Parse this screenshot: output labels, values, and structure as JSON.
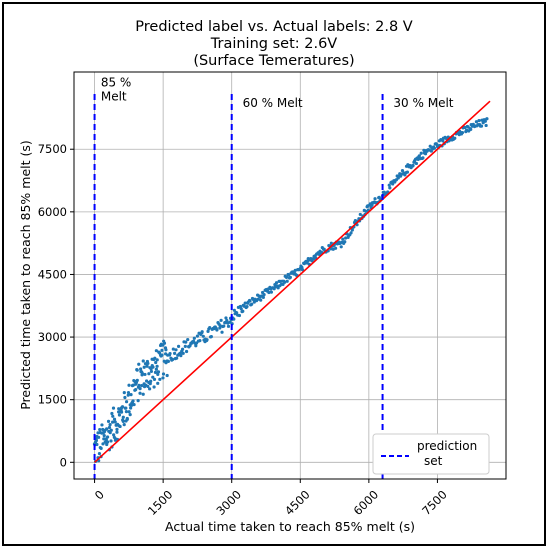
{
  "chart_data": {
    "type": "scatter",
    "title_lines": [
      "Predicted label vs. Actual labels: 2.8 V",
      "Training set: 2.6V",
      "(Surface Temeratures)"
    ],
    "xlabel": "Actual time taken to reach 85% melt (s)",
    "ylabel": "Predicted time taken to reach 85% melt (s)",
    "xlim": [
      -450,
      9000
    ],
    "ylim": [
      -400,
      9350
    ],
    "xticks": [
      0,
      1500,
      3000,
      4500,
      6000,
      7500
    ],
    "xtick_labels": [
      "0",
      "1500",
      "3000",
      "4500",
      "6000",
      "7500"
    ],
    "yticks": [
      0,
      1500,
      3000,
      4500,
      6000,
      7500
    ],
    "ytick_labels": [
      "0",
      "1500",
      "3000",
      "4500",
      "6000",
      "7500"
    ],
    "grid": true,
    "legend_position": "bottom-right",
    "series": [
      {
        "kind": "scatter",
        "color": "#1f77b4",
        "anchors": [
          [
            0,
            300
          ],
          [
            150,
            450
          ],
          [
            300,
            700
          ],
          [
            450,
            900
          ],
          [
            600,
            1150
          ],
          [
            750,
            1450
          ],
          [
            900,
            1800
          ],
          [
            1050,
            2050
          ],
          [
            1200,
            2150
          ],
          [
            1350,
            2250
          ],
          [
            1500,
            2450
          ],
          [
            1800,
            2650
          ],
          [
            2100,
            2850
          ],
          [
            2400,
            3000
          ],
          [
            2700,
            3200
          ],
          [
            3000,
            3450
          ],
          [
            3300,
            3750
          ],
          [
            3600,
            3950
          ],
          [
            3900,
            4150
          ],
          [
            4200,
            4400
          ],
          [
            4500,
            4600
          ],
          [
            4800,
            4950
          ],
          [
            5100,
            5150
          ],
          [
            5400,
            5250
          ],
          [
            5700,
            5700
          ],
          [
            6000,
            6100
          ],
          [
            6300,
            6400
          ],
          [
            6600,
            6750
          ],
          [
            6900,
            7100
          ],
          [
            7200,
            7400
          ],
          [
            7500,
            7600
          ],
          [
            7800,
            7800
          ],
          [
            8100,
            7950
          ],
          [
            8400,
            8100
          ],
          [
            8600,
            8150
          ]
        ]
      },
      {
        "kind": "line",
        "color": "#ff0000",
        "x": [
          0,
          8650
        ],
        "y": [
          0,
          8650
        ]
      },
      {
        "kind": "vline",
        "name": "prediction set",
        "color": "#0000ff",
        "linestyle": "dashed",
        "x": [
          0,
          3000,
          6300
        ]
      }
    ],
    "annotations": [
      {
        "lines": [
          "85 %",
          "Melt"
        ],
        "x": 50,
        "y": 9050
      },
      {
        "lines": [
          "60 % Melt"
        ],
        "x": 3150,
        "y": 8700
      },
      {
        "lines": [
          "30 % Melt"
        ],
        "x": 6450,
        "y": 8700
      }
    ],
    "legend": {
      "label_line1": "prediction",
      "label_line2": "set"
    }
  }
}
